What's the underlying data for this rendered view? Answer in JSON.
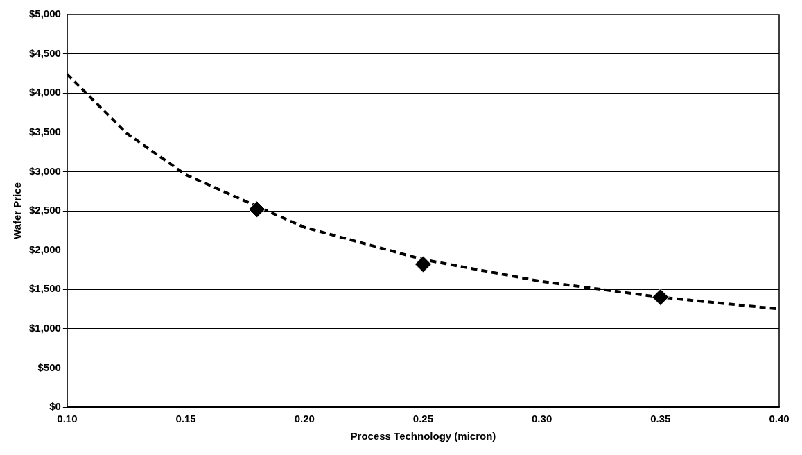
{
  "chart_data": {
    "type": "scatter",
    "xlabel": "Process Technology (micron)",
    "ylabel": "Wafer Price",
    "series": [
      {
        "type": "scatter",
        "color": "#000000",
        "marker": "diamond",
        "x": [
          0.18,
          0.25,
          0.35
        ],
        "values": [
          2520,
          1820,
          1400
        ]
      },
      {
        "type": "line",
        "color": "#000000",
        "marker": "none",
        "line_style": "dashed",
        "x": [
          0.1,
          0.125,
          0.15,
          0.2,
          0.25,
          0.3,
          0.35,
          0.4
        ],
        "values": [
          4240,
          3490,
          2960,
          2290,
          1880,
          1600,
          1400,
          1250
        ]
      }
    ],
    "xlim": [
      0.1,
      0.4
    ],
    "xticks": [
      {
        "value": 0.1,
        "label": "0.10"
      },
      {
        "value": 0.15,
        "label": "0.15"
      },
      {
        "value": 0.2,
        "label": "0.20"
      },
      {
        "value": 0.25,
        "label": "0.25"
      },
      {
        "value": 0.3,
        "label": "0.30"
      },
      {
        "value": 0.35,
        "label": "0.35"
      },
      {
        "value": 0.4,
        "label": "0.40"
      }
    ],
    "ylim": [
      0,
      5000
    ],
    "yticks": [
      {
        "value": 0,
        "label": "$0"
      },
      {
        "value": 500,
        "label": "$500"
      },
      {
        "value": 1000,
        "label": "$1,000"
      },
      {
        "value": 1500,
        "label": "$1,500"
      },
      {
        "value": 2000,
        "label": "$2,000"
      },
      {
        "value": 2500,
        "label": "$2,500"
      },
      {
        "value": 3000,
        "label": "$3,000"
      },
      {
        "value": 3500,
        "label": "$3,500"
      },
      {
        "value": 4000,
        "label": "$4,000"
      },
      {
        "value": 4500,
        "label": "$4,500"
      },
      {
        "value": 5000,
        "label": "$5,000"
      }
    ],
    "grid": "y",
    "legend": false
  }
}
